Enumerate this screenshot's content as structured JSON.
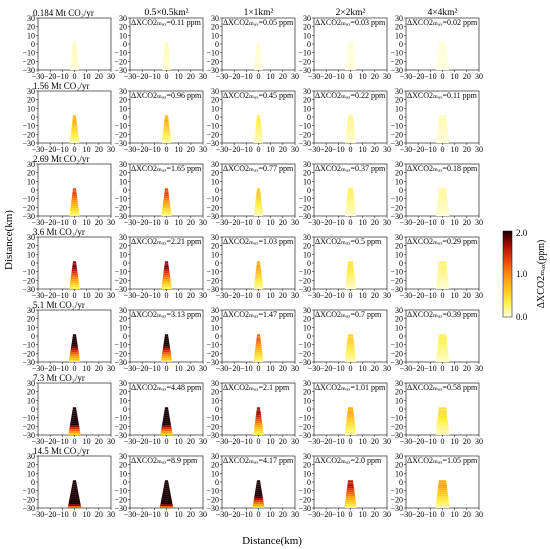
{
  "chart_data": {
    "type": "heatmap",
    "ylabel": "Distance(km)",
    "xlabel": "Distance(km)",
    "xlim": [
      -30,
      30
    ],
    "ylim": [
      -30,
      30
    ],
    "xticks": [
      -30,
      -20,
      -10,
      0,
      10,
      20,
      30
    ],
    "yticks": [
      30,
      20,
      10,
      0,
      -10,
      -20,
      -30
    ],
    "resolutions": [
      "",
      "0.5×0.5km²",
      "1×1km²",
      "2×2km²",
      "4×4km²"
    ],
    "emissions": [
      "0.184 Mt CO₂/yr",
      "1.56 Mt CO₂/yr",
      "2.69 Mt CO₂/yr",
      "3.6 Mt CO₂/yr",
      "5.1 Mt CO₂/yr",
      "7.3 Mt CO₂/yr",
      "14.5 Mt CO₂/yr"
    ],
    "dxco2_max_labels": [
      [
        "",
        "ΔXCO2ₘₐₓ=0.11 ppm",
        "ΔXCO2ₘₐₓ=0.05 ppm",
        "ΔXCO2ₘₐₓ=0.03 ppm",
        "ΔXCO2ₘₐₓ=0.02 ppm"
      ],
      [
        "",
        "ΔXCO2ₘₐₓ=0.96 ppm",
        "ΔXCO2ₘₐₓ=0.45 ppm",
        "ΔXCO2ₘₐₓ=0.22 ppm",
        "ΔXCO2ₘₐₓ=0.11 ppm"
      ],
      [
        "",
        "ΔXCO2ₘₐₓ=1.65 ppm",
        "ΔXCO2ₘₐₓ=0.77 ppm",
        "ΔXCO2ₘₐₓ=0.37 ppm",
        "ΔXCO2ₘₐₓ=0.18 ppm"
      ],
      [
        "",
        "ΔXCO2ₘₐₓ=2.21 ppm",
        "ΔXCO2ₘₐₓ=1.03 ppm",
        "ΔXCO2ₘₐₓ=0.5 ppm",
        "ΔXCO2ₘₐₓ=0.29 ppm"
      ],
      [
        "",
        "ΔXCO2ₘₐₓ=3.13 ppm",
        "ΔXCO2ₘₐₓ=1.47 ppm",
        "ΔXCO2ₘₐₓ=0.7 ppm",
        "ΔXCO2ₘₐₓ=0.39 ppm"
      ],
      [
        "",
        "ΔXCO2ₘₐₓ=4.48 ppm",
        "ΔXCO2ₘₐₓ=2.1 ppm",
        "ΔXCO2ₘₐₓ=1.01 ppm",
        "ΔXCO2ₘₐₓ=0.58 ppm"
      ],
      [
        "",
        "ΔXCO2ₘₐₓ=8.9 ppm",
        "ΔXCO2ₘₐₓ=4.17 ppm",
        "ΔXCO2ₘₐₓ=2.0 ppm",
        "ΔXCO2ₘₐₓ=1.05 ppm"
      ]
    ],
    "max_values": [
      [
        0.11,
        0.11,
        0.05,
        0.03,
        0.02
      ],
      [
        0.96,
        0.96,
        0.45,
        0.22,
        0.11
      ],
      [
        1.65,
        1.65,
        0.77,
        0.37,
        0.18
      ],
      [
        2.21,
        2.21,
        1.03,
        0.5,
        0.29
      ],
      [
        3.13,
        3.13,
        1.47,
        0.7,
        0.39
      ],
      [
        4.48,
        4.48,
        2.1,
        1.01,
        0.58
      ],
      [
        8.9,
        8.9,
        4.17,
        2.0,
        1.05
      ]
    ],
    "colorbar": {
      "label": "ΔXCO2ₘₐₓ(ppm)",
      "ticks": [
        "0.0",
        "1.0",
        "2.0"
      ],
      "range": [
        0,
        2
      ],
      "colors": [
        "#ffffe0",
        "#fff04a",
        "#ffc21c",
        "#ff8a10",
        "#e8400a",
        "#a80a04",
        "#1a0000"
      ]
    }
  }
}
